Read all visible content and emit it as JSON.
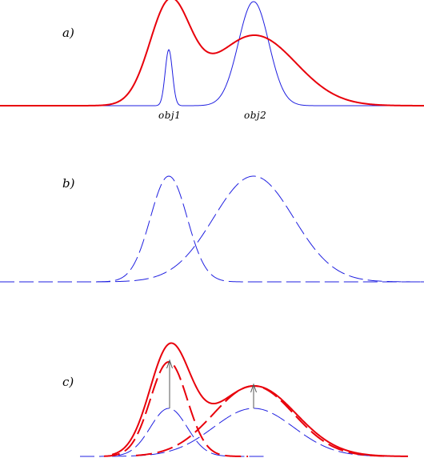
{
  "panels": {
    "a": {
      "label": "a)",
      "objects": [
        "obj1",
        "obj2"
      ]
    },
    "b": {
      "label": "b)"
    },
    "c": {
      "label": "c)"
    }
  },
  "colors": {
    "red": "#e8000b",
    "blue": "#1f1fe0",
    "arrow": "#555555"
  }
}
